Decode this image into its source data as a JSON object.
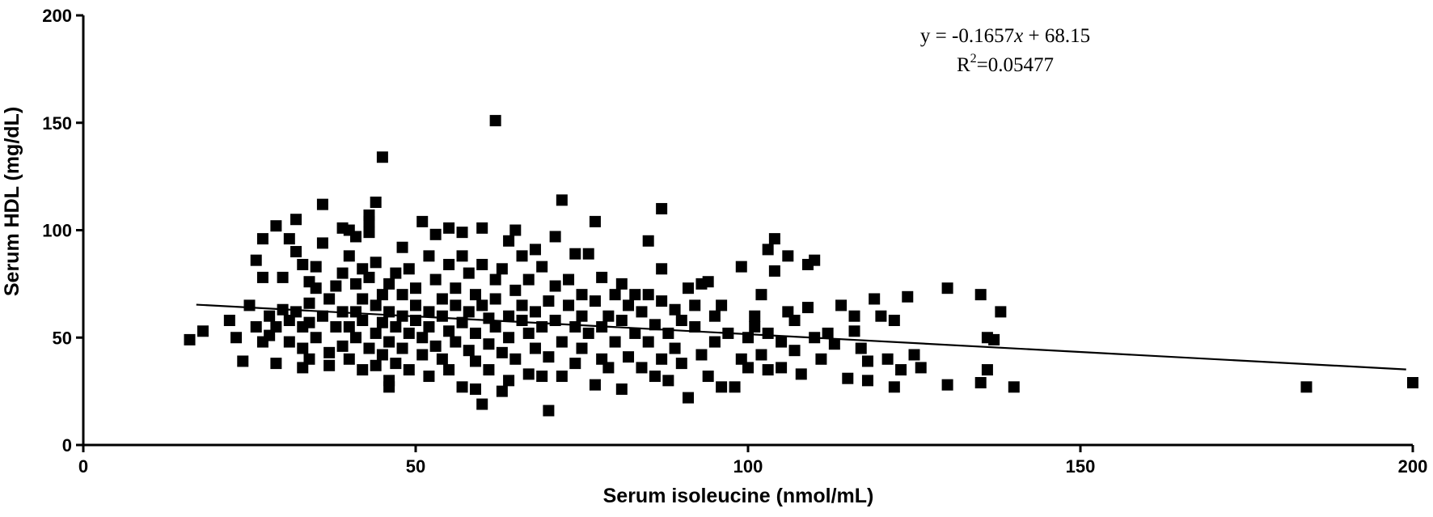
{
  "chart_data": {
    "type": "scatter",
    "xlabel": "Serum isoleucine (nmol/mL)",
    "ylabel": "Serum HDL (mg/dL)",
    "xlim": [
      0,
      200
    ],
    "ylim": [
      0,
      200
    ],
    "x_ticks": [
      0,
      50,
      100,
      150,
      200
    ],
    "y_ticks": [
      0,
      50,
      100,
      150,
      200
    ],
    "grid": false,
    "marker": "square",
    "marker_color": "#000000",
    "annotation": {
      "equation": "y = -0.1657x + 68.15",
      "equation_prefix": "y = -0.1657",
      "equation_var": "x",
      "equation_suffix": " + 68.15",
      "r2": "R2=0.05477",
      "r2_base": "R",
      "r2_exp": "2",
      "r2_value": "=0.05477"
    },
    "trendline": {
      "slope": -0.1657,
      "intercept": 68.15,
      "x_start": 17,
      "x_end": 199
    },
    "points": [
      [
        16,
        49
      ],
      [
        18,
        53
      ],
      [
        22,
        58
      ],
      [
        23,
        50
      ],
      [
        24,
        39
      ],
      [
        25,
        65
      ],
      [
        26,
        55
      ],
      [
        26,
        86
      ],
      [
        27,
        96
      ],
      [
        27,
        78
      ],
      [
        27,
        48
      ],
      [
        28,
        60
      ],
      [
        28,
        51
      ],
      [
        29,
        102
      ],
      [
        29,
        38
      ],
      [
        29,
        55
      ],
      [
        30,
        78
      ],
      [
        30,
        63
      ],
      [
        31,
        58
      ],
      [
        31,
        96
      ],
      [
        31,
        48
      ],
      [
        32,
        90
      ],
      [
        32,
        105
      ],
      [
        32,
        62
      ],
      [
        33,
        55
      ],
      [
        33,
        84
      ],
      [
        33,
        45
      ],
      [
        33,
        36
      ],
      [
        34,
        76
      ],
      [
        34,
        66
      ],
      [
        34,
        40
      ],
      [
        34,
        57
      ],
      [
        35,
        83
      ],
      [
        35,
        50
      ],
      [
        35,
        73
      ],
      [
        36,
        112
      ],
      [
        36,
        94
      ],
      [
        36,
        60
      ],
      [
        37,
        43
      ],
      [
        37,
        68
      ],
      [
        37,
        37
      ],
      [
        38,
        55
      ],
      [
        38,
        74
      ],
      [
        39,
        101
      ],
      [
        39,
        80
      ],
      [
        39,
        62
      ],
      [
        39,
        46
      ],
      [
        40,
        55
      ],
      [
        40,
        100
      ],
      [
        40,
        88
      ],
      [
        40,
        40
      ],
      [
        41,
        62
      ],
      [
        41,
        75
      ],
      [
        41,
        97
      ],
      [
        41,
        50
      ],
      [
        42,
        68
      ],
      [
        42,
        82
      ],
      [
        42,
        35
      ],
      [
        42,
        58
      ],
      [
        43,
        99
      ],
      [
        43,
        78
      ],
      [
        43,
        45
      ],
      [
        43,
        104
      ],
      [
        43,
        107
      ],
      [
        44,
        113
      ],
      [
        44,
        85
      ],
      [
        44,
        65
      ],
      [
        44,
        52
      ],
      [
        44,
        37
      ],
      [
        45,
        134
      ],
      [
        45,
        70
      ],
      [
        45,
        57
      ],
      [
        45,
        42
      ],
      [
        46,
        75
      ],
      [
        46,
        62
      ],
      [
        46,
        48
      ],
      [
        46,
        27
      ],
      [
        46,
        30
      ],
      [
        47,
        80
      ],
      [
        47,
        55
      ],
      [
        47,
        38
      ],
      [
        48,
        92
      ],
      [
        48,
        70
      ],
      [
        48,
        60
      ],
      [
        48,
        45
      ],
      [
        49,
        35
      ],
      [
        49,
        52
      ],
      [
        49,
        82
      ],
      [
        50,
        65
      ],
      [
        50,
        58
      ],
      [
        50,
        73
      ],
      [
        51,
        104
      ],
      [
        51,
        50
      ],
      [
        51,
        42
      ],
      [
        52,
        88
      ],
      [
        52,
        62
      ],
      [
        52,
        32
      ],
      [
        52,
        55
      ],
      [
        53,
        98
      ],
      [
        53,
        77
      ],
      [
        53,
        46
      ],
      [
        54,
        68
      ],
      [
        54,
        60
      ],
      [
        54,
        40
      ],
      [
        55,
        101
      ],
      [
        55,
        84
      ],
      [
        55,
        53
      ],
      [
        55,
        35
      ],
      [
        56,
        73
      ],
      [
        56,
        65
      ],
      [
        56,
        48
      ],
      [
        57,
        99
      ],
      [
        57,
        88
      ],
      [
        57,
        57
      ],
      [
        57,
        27
      ],
      [
        58,
        80
      ],
      [
        58,
        62
      ],
      [
        58,
        44
      ],
      [
        59,
        70
      ],
      [
        59,
        52
      ],
      [
        59,
        39
      ],
      [
        59,
        26
      ],
      [
        60,
        101
      ],
      [
        60,
        84
      ],
      [
        60,
        65
      ],
      [
        60,
        19
      ],
      [
        61,
        59
      ],
      [
        61,
        47
      ],
      [
        61,
        35
      ],
      [
        62,
        151
      ],
      [
        62,
        77
      ],
      [
        62,
        68
      ],
      [
        62,
        55
      ],
      [
        63,
        43
      ],
      [
        63,
        82
      ],
      [
        63,
        25
      ],
      [
        64,
        95
      ],
      [
        64,
        60
      ],
      [
        64,
        50
      ],
      [
        64,
        30
      ],
      [
        65,
        100
      ],
      [
        65,
        72
      ],
      [
        65,
        40
      ],
      [
        66,
        65
      ],
      [
        66,
        58
      ],
      [
        66,
        88
      ],
      [
        67,
        52
      ],
      [
        67,
        33
      ],
      [
        67,
        77
      ],
      [
        68,
        91
      ],
      [
        68,
        62
      ],
      [
        68,
        45
      ],
      [
        69,
        83
      ],
      [
        69,
        55
      ],
      [
        69,
        32
      ],
      [
        70,
        16
      ],
      [
        70,
        67
      ],
      [
        70,
        41
      ],
      [
        71,
        97
      ],
      [
        71,
        58
      ],
      [
        71,
        74
      ],
      [
        72,
        114
      ],
      [
        72,
        48
      ],
      [
        72,
        32
      ],
      [
        73,
        65
      ],
      [
        73,
        77
      ],
      [
        74,
        55
      ],
      [
        74,
        89
      ],
      [
        74,
        38
      ],
      [
        75,
        70
      ],
      [
        75,
        60
      ],
      [
        75,
        45
      ],
      [
        76,
        89
      ],
      [
        76,
        52
      ],
      [
        77,
        104
      ],
      [
        77,
        67
      ],
      [
        77,
        28
      ],
      [
        78,
        78
      ],
      [
        78,
        55
      ],
      [
        78,
        40
      ],
      [
        79,
        60
      ],
      [
        79,
        36
      ],
      [
        80,
        70
      ],
      [
        80,
        48
      ],
      [
        81,
        75
      ],
      [
        81,
        26
      ],
      [
        81,
        58
      ],
      [
        82,
        65
      ],
      [
        82,
        41
      ],
      [
        83,
        70
      ],
      [
        83,
        52
      ],
      [
        84,
        62
      ],
      [
        84,
        36
      ],
      [
        85,
        95
      ],
      [
        85,
        48
      ],
      [
        85,
        70
      ],
      [
        86,
        32
      ],
      [
        86,
        56
      ],
      [
        87,
        110
      ],
      [
        87,
        82
      ],
      [
        87,
        67
      ],
      [
        87,
        40
      ],
      [
        88,
        52
      ],
      [
        88,
        30
      ],
      [
        89,
        63
      ],
      [
        89,
        45
      ],
      [
        90,
        58
      ],
      [
        90,
        38
      ],
      [
        91,
        73
      ],
      [
        91,
        22
      ],
      [
        92,
        55
      ],
      [
        92,
        65
      ],
      [
        93,
        42
      ],
      [
        93,
        75
      ],
      [
        94,
        76
      ],
      [
        94,
        32
      ],
      [
        95,
        60
      ],
      [
        95,
        48
      ],
      [
        96,
        27
      ],
      [
        96,
        65
      ],
      [
        97,
        52
      ],
      [
        98,
        27
      ],
      [
        99,
        40
      ],
      [
        99,
        83
      ],
      [
        100,
        50
      ],
      [
        100,
        36
      ],
      [
        101,
        55
      ],
      [
        101,
        60
      ],
      [
        102,
        70
      ],
      [
        102,
        42
      ],
      [
        103,
        91
      ],
      [
        103,
        52
      ],
      [
        103,
        35
      ],
      [
        104,
        81
      ],
      [
        104,
        96
      ],
      [
        105,
        48
      ],
      [
        105,
        36
      ],
      [
        106,
        88
      ],
      [
        106,
        62
      ],
      [
        107,
        58
      ],
      [
        107,
        44
      ],
      [
        108,
        33
      ],
      [
        109,
        84
      ],
      [
        109,
        64
      ],
      [
        110,
        86
      ],
      [
        110,
        50
      ],
      [
        111,
        40
      ],
      [
        112,
        52
      ],
      [
        113,
        47
      ],
      [
        114,
        65
      ],
      [
        115,
        31
      ],
      [
        116,
        53
      ],
      [
        116,
        60
      ],
      [
        117,
        45
      ],
      [
        118,
        39
      ],
      [
        118,
        30
      ],
      [
        119,
        68
      ],
      [
        120,
        60
      ],
      [
        121,
        40
      ],
      [
        122,
        27
      ],
      [
        122,
        58
      ],
      [
        123,
        35
      ],
      [
        124,
        69
      ],
      [
        125,
        42
      ],
      [
        126,
        36
      ],
      [
        130,
        73
      ],
      [
        130,
        28
      ],
      [
        135,
        70
      ],
      [
        135,
        29
      ],
      [
        136,
        35
      ],
      [
        136,
        50
      ],
      [
        137,
        49
      ],
      [
        138,
        62
      ],
      [
        140,
        27
      ],
      [
        184,
        27
      ],
      [
        200,
        29
      ]
    ]
  }
}
